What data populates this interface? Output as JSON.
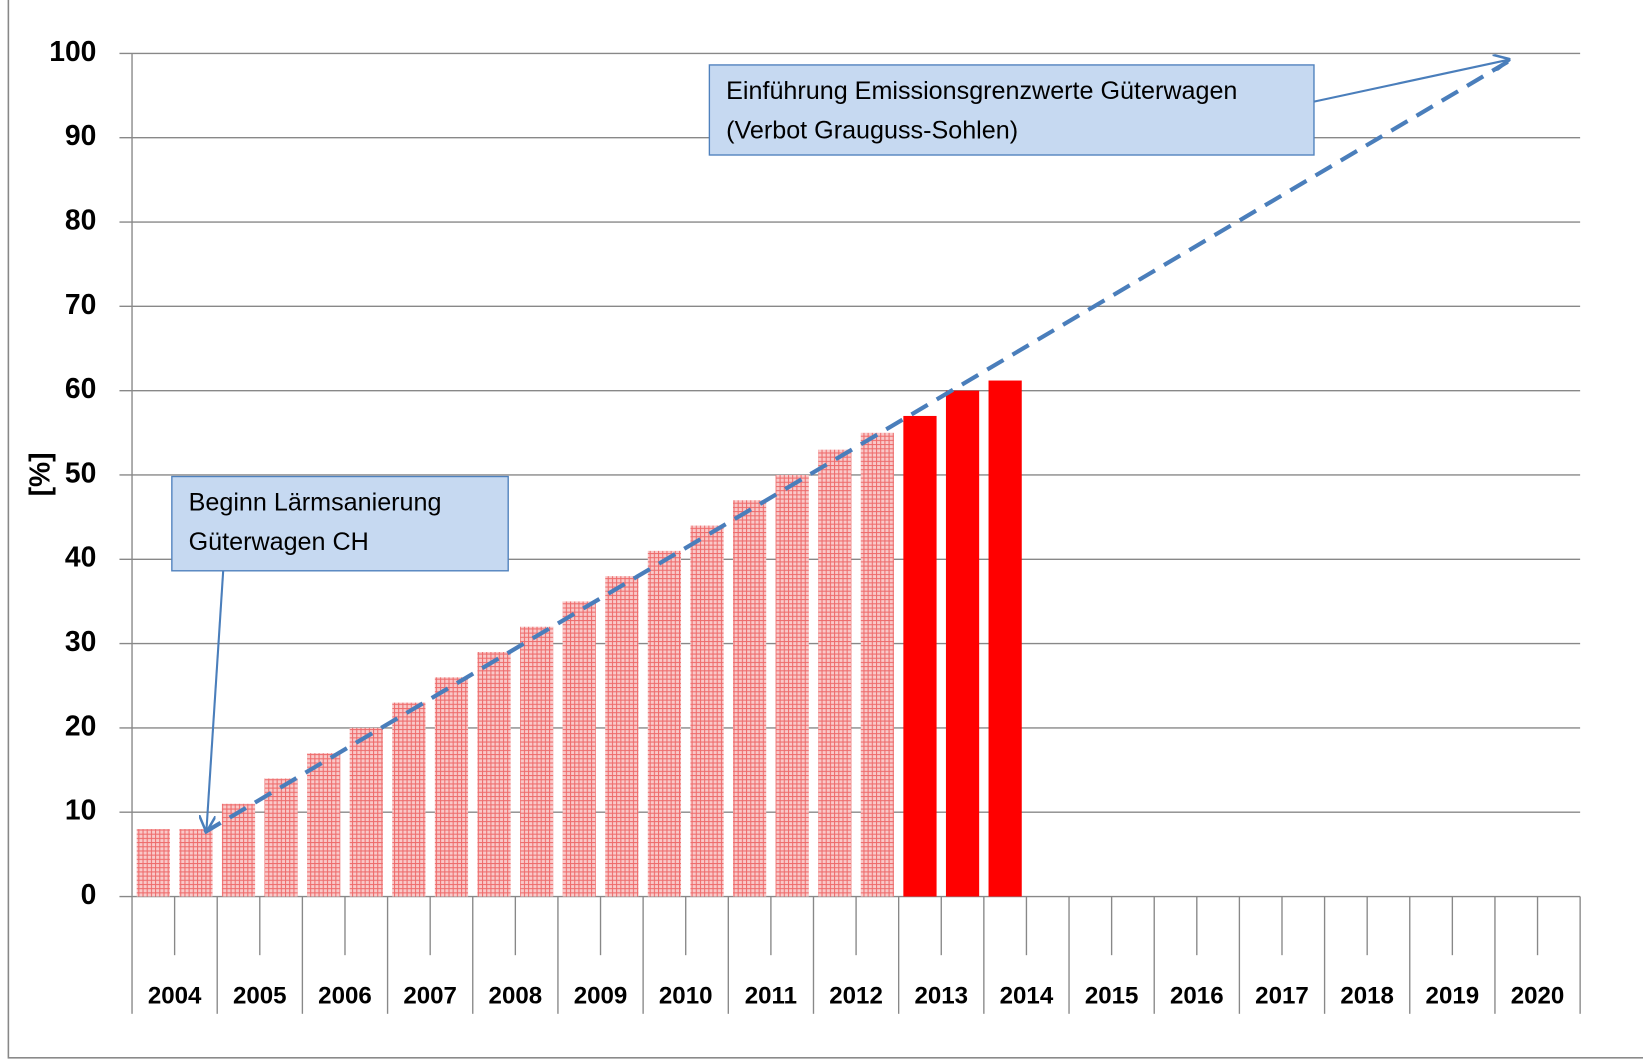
{
  "chart_data": {
    "type": "bar",
    "ylabel": "[%]",
    "categories": [
      "2004",
      null,
      "2005",
      null,
      "2006",
      null,
      "2007",
      null,
      "2008",
      null,
      "2009",
      null,
      "2010",
      null,
      "2011",
      null,
      "2012",
      null,
      "2013",
      null,
      "2014",
      null,
      "2015",
      null,
      "2016",
      null,
      "2017",
      null,
      "2018",
      null,
      "2019",
      null,
      "2020",
      null
    ],
    "series": [
      {
        "color": "#f26a6a",
        "pattern": "hatched",
        "values": [
          8,
          8,
          11,
          14,
          17,
          20,
          23,
          26,
          29,
          32,
          35,
          38,
          41,
          44,
          47,
          50,
          53,
          55,
          null,
          null,
          null,
          null,
          null,
          null,
          null,
          null,
          null,
          null,
          null,
          null,
          null,
          null,
          null,
          null
        ]
      },
      {
        "color": "#ff0000",
        "values": [
          null,
          null,
          null,
          null,
          null,
          null,
          null,
          null,
          null,
          null,
          null,
          null,
          null,
          null,
          null,
          null,
          null,
          null,
          57,
          60,
          61.2,
          null,
          null,
          null,
          null,
          null,
          null,
          null,
          null,
          null,
          null,
          null,
          null,
          null
        ]
      }
    ],
    "ylim": [
      0,
      100
    ],
    "yticks": [
      0,
      10,
      20,
      30,
      40,
      50,
      60,
      70,
      80,
      90,
      100
    ],
    "grid": true,
    "trend": {
      "color": "#4a7ebb",
      "x": [
        2004.85,
        2020.15
      ],
      "values": [
        7.6,
        99
      ]
    },
    "annotations": [
      {
        "lines": [
          "Einführung Emissionsgrenzwerte Güterwagen",
          "(Verbot Grauguss-Sohlen)"
        ]
      },
      {
        "lines": [
          "Beginn Lärmsanierung",
          "Güterwagen CH"
        ]
      }
    ]
  }
}
